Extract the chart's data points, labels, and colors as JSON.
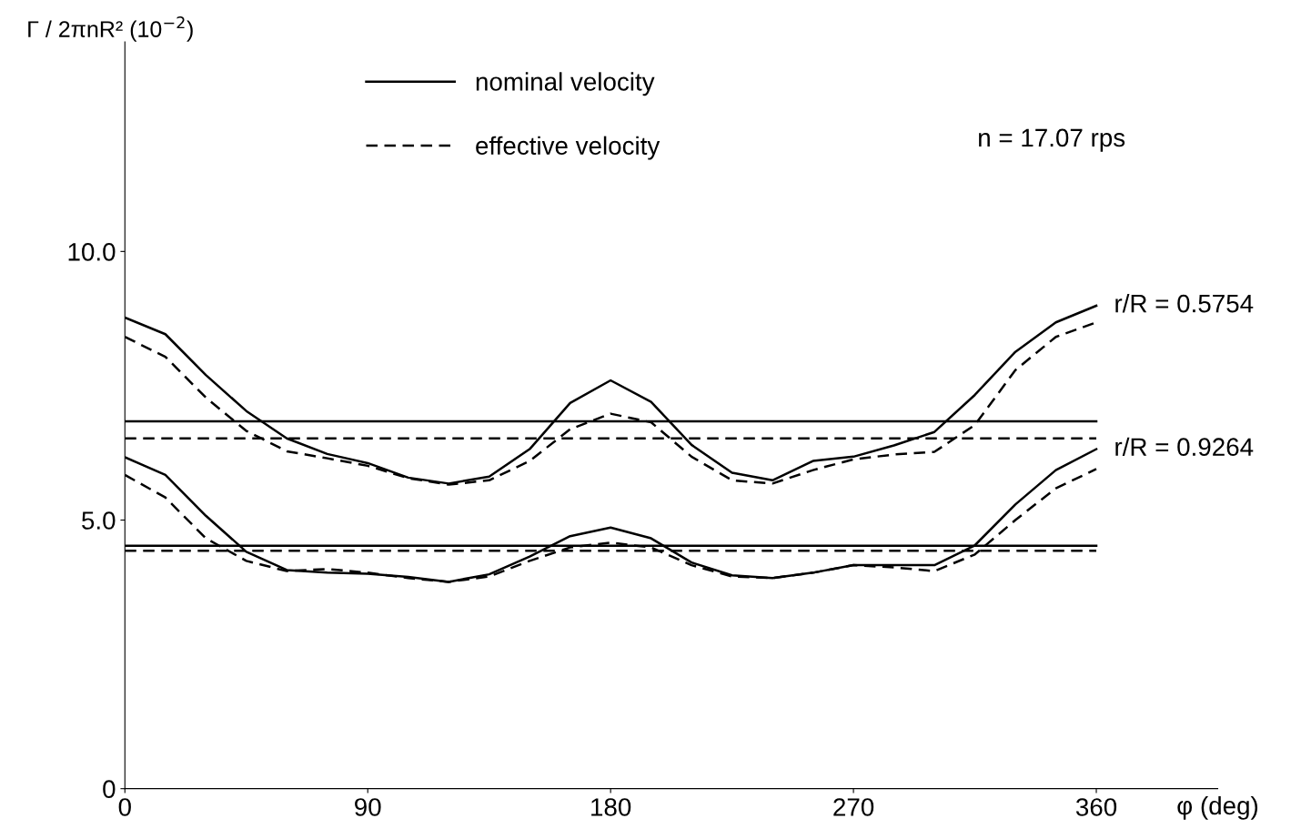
{
  "chart_data": {
    "type": "line",
    "ylabel": "Γ / 2πnR² (10$^{−2}$)",
    "xlabel": "φ (deg)",
    "x": [
      0,
      15,
      30,
      45,
      60,
      75,
      90,
      105,
      120,
      135,
      150,
      165,
      180,
      195,
      210,
      225,
      240,
      255,
      270,
      285,
      300,
      315,
      330,
      345,
      360
    ],
    "series": [
      {
        "name": "nominal velocity",
        "color": "#000000",
        "line_style": "solid",
        "values": [
          8.77,
          8.46,
          7.7,
          7.03,
          6.52,
          6.23,
          6.06,
          5.79,
          5.68,
          5.81,
          6.32,
          7.18,
          7.6,
          7.2,
          6.4,
          5.88,
          5.74,
          6.1,
          6.18,
          6.39,
          6.64,
          7.33,
          8.13,
          8.68,
          8.99
        ]
      },
      {
        "name": "effective velocity",
        "color": "#000000",
        "line_style": "dashed",
        "values": [
          8.41,
          8.04,
          7.28,
          6.66,
          6.28,
          6.15,
          6.01,
          5.78,
          5.66,
          5.74,
          6.1,
          6.69,
          6.98,
          6.82,
          6.18,
          5.74,
          5.68,
          5.93,
          6.13,
          6.22,
          6.27,
          6.77,
          7.79,
          8.41,
          8.68
        ]
      },
      {
        "color": "#000000",
        "line_style": "solid",
        "values": [
          6.17,
          5.84,
          5.08,
          4.41,
          4.07,
          4.02,
          4.0,
          3.94,
          3.85,
          3.99,
          4.32,
          4.7,
          4.86,
          4.66,
          4.21,
          3.97,
          3.92,
          4.02,
          4.16,
          4.16,
          4.16,
          4.53,
          5.29,
          5.93,
          6.32
        ]
      },
      {
        "color": "#000000",
        "line_style": "dashed",
        "values": [
          5.84,
          5.42,
          4.66,
          4.24,
          4.05,
          4.09,
          4.02,
          3.92,
          3.85,
          3.95,
          4.24,
          4.49,
          4.58,
          4.49,
          4.16,
          3.95,
          3.92,
          4.02,
          4.16,
          4.12,
          4.05,
          4.36,
          5.0,
          5.59,
          5.95
        ]
      }
    ],
    "ref_lines": [
      {
        "axis": "y",
        "value": 6.84,
        "color": "#000000",
        "line_style": "solid"
      },
      {
        "axis": "y",
        "value": 6.52,
        "color": "#000000",
        "line_style": "dashed"
      },
      {
        "axis": "y",
        "value": 4.52,
        "color": "#000000",
        "line_style": "solid"
      },
      {
        "axis": "y",
        "value": 4.43,
        "color": "#000000",
        "line_style": "dashed"
      }
    ],
    "xlim": [
      0,
      405
    ],
    "ylim": [
      0,
      13.9
    ],
    "xticks": [
      0,
      90,
      180,
      270,
      360
    ],
    "yticks": [
      {
        "value": 0,
        "label": "0"
      },
      {
        "value": 5,
        "label": "5.0"
      },
      {
        "value": 10,
        "label": "10.0"
      }
    ],
    "annotations": [
      "n = 17.07 rps",
      {
        "text": "r/R = 0.5754",
        "x": 360,
        "y": 8.99
      },
      {
        "text": "r/R = 0.9264",
        "x": 360,
        "y": 6.32
      }
    ],
    "legend": "top left",
    "grid": false,
    "marker": "none"
  }
}
